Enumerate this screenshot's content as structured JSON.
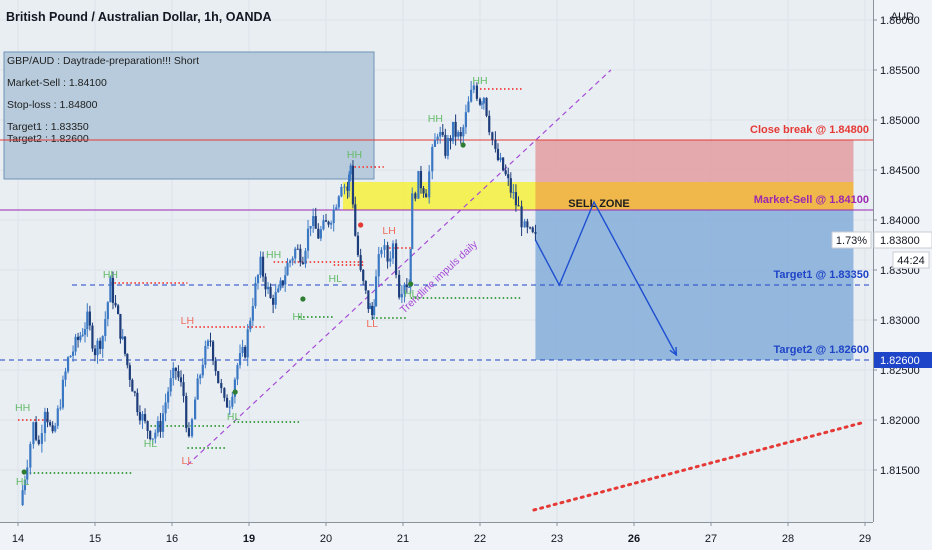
{
  "chart_data": {
    "type": "candlestick",
    "title": "British Pound / Australian Dollar, 1h, OANDA",
    "currency_label": "AUD",
    "ylim": [
      1.8112,
      1.8595
    ],
    "y_ticks": [
      "1.81500",
      "1.82000",
      "1.82500",
      "1.83000",
      "1.83500",
      "1.84000",
      "1.84500",
      "1.85000",
      "1.85500",
      "1.86000"
    ],
    "x_ticks": [
      {
        "label": "14",
        "day": 14.0,
        "bold": false
      },
      {
        "label": "15",
        "day": 15.0,
        "bold": false
      },
      {
        "label": "16",
        "day": 16.0,
        "bold": false
      },
      {
        "label": "19",
        "day": 17.0,
        "bold": true
      },
      {
        "label": "20",
        "day": 18.0,
        "bold": false
      },
      {
        "label": "21",
        "day": 19.0,
        "bold": false
      },
      {
        "label": "22",
        "day": 20.0,
        "bold": false
      },
      {
        "label": "23",
        "day": 21.0,
        "bold": false
      },
      {
        "label": "26",
        "day": 22.0,
        "bold": true
      },
      {
        "label": "27",
        "day": 23.0,
        "bold": false
      },
      {
        "label": "28",
        "day": 24.0,
        "bold": false
      },
      {
        "label": "29",
        "day": 25.0,
        "bold": false
      }
    ],
    "price_path": [
      {
        "day": 14.03,
        "price": 1.8115
      },
      {
        "day": 14.12,
        "price": 1.816
      },
      {
        "day": 14.2,
        "price": 1.8195
      },
      {
        "day": 14.27,
        "price": 1.8175
      },
      {
        "day": 14.35,
        "price": 1.8215
      },
      {
        "day": 14.45,
        "price": 1.818
      },
      {
        "day": 14.55,
        "price": 1.822
      },
      {
        "day": 14.65,
        "price": 1.826
      },
      {
        "day": 14.78,
        "price": 1.828
      },
      {
        "day": 14.9,
        "price": 1.83
      },
      {
        "day": 15.0,
        "price": 1.827
      },
      {
        "day": 15.1,
        "price": 1.8285
      },
      {
        "day": 15.2,
        "price": 1.8335
      },
      {
        "day": 15.3,
        "price": 1.83
      },
      {
        "day": 15.42,
        "price": 1.8255
      },
      {
        "day": 15.55,
        "price": 1.8215
      },
      {
        "day": 15.65,
        "price": 1.8195
      },
      {
        "day": 15.75,
        "price": 1.8185
      },
      {
        "day": 15.85,
        "price": 1.8195
      },
      {
        "day": 15.95,
        "price": 1.823
      },
      {
        "day": 16.05,
        "price": 1.825
      },
      {
        "day": 16.15,
        "price": 1.8225
      },
      {
        "day": 16.22,
        "price": 1.8175
      },
      {
        "day": 16.3,
        "price": 1.822
      },
      {
        "day": 16.4,
        "price": 1.826
      },
      {
        "day": 16.5,
        "price": 1.828
      },
      {
        "day": 16.6,
        "price": 1.824
      },
      {
        "day": 16.68,
        "price": 1.8215
      },
      {
        "day": 16.75,
        "price": 1.822
      },
      {
        "day": 16.85,
        "price": 1.8255
      },
      {
        "day": 16.95,
        "price": 1.827
      },
      {
        "day": 17.05,
        "price": 1.832
      },
      {
        "day": 17.15,
        "price": 1.8355
      },
      {
        "day": 17.28,
        "price": 1.832
      },
      {
        "day": 17.38,
        "price": 1.8325
      },
      {
        "day": 17.5,
        "price": 1.8355
      },
      {
        "day": 17.6,
        "price": 1.837
      },
      {
        "day": 17.7,
        "price": 1.8365
      },
      {
        "day": 17.8,
        "price": 1.84
      },
      {
        "day": 17.9,
        "price": 1.8385
      },
      {
        "day": 18.0,
        "price": 1.8395
      },
      {
        "day": 18.1,
        "price": 1.841
      },
      {
        "day": 18.2,
        "price": 1.844
      },
      {
        "day": 18.28,
        "price": 1.843
      },
      {
        "day": 18.32,
        "price": 1.8455
      },
      {
        "day": 18.38,
        "price": 1.8385
      },
      {
        "day": 18.45,
        "price": 1.8345
      },
      {
        "day": 18.55,
        "price": 1.8315
      },
      {
        "day": 18.6,
        "price": 1.8305
      },
      {
        "day": 18.65,
        "price": 1.834
      },
      {
        "day": 18.72,
        "price": 1.8375
      },
      {
        "day": 18.8,
        "price": 1.836
      },
      {
        "day": 18.87,
        "price": 1.8375
      },
      {
        "day": 18.95,
        "price": 1.833
      },
      {
        "day": 19.02,
        "price": 1.834
      },
      {
        "day": 19.08,
        "price": 1.8335
      },
      {
        "day": 19.12,
        "price": 1.842
      },
      {
        "day": 19.2,
        "price": 1.844
      },
      {
        "day": 19.3,
        "price": 1.843
      },
      {
        "day": 19.38,
        "price": 1.8465
      },
      {
        "day": 19.45,
        "price": 1.849
      },
      {
        "day": 19.55,
        "price": 1.847
      },
      {
        "day": 19.65,
        "price": 1.849
      },
      {
        "day": 19.75,
        "price": 1.848
      },
      {
        "day": 19.85,
        "price": 1.8515
      },
      {
        "day": 19.92,
        "price": 1.8535
      },
      {
        "day": 20.0,
        "price": 1.852
      },
      {
        "day": 20.05,
        "price": 1.8525
      },
      {
        "day": 20.12,
        "price": 1.8495
      },
      {
        "day": 20.2,
        "price": 1.8465
      },
      {
        "day": 20.3,
        "price": 1.845
      },
      {
        "day": 20.4,
        "price": 1.843
      },
      {
        "day": 20.5,
        "price": 1.841
      },
      {
        "day": 20.58,
        "price": 1.839
      },
      {
        "day": 20.65,
        "price": 1.8385
      },
      {
        "day": 20.72,
        "price": 1.838
      }
    ],
    "info_box": {
      "title": "GBP/AUD : Daytrade-preparation!!! Short",
      "market_sell": "Market-Sell : 1.84100",
      "stop_loss": "Stop-loss : 1.84800",
      "target1": "Target1 : 1.83350",
      "target2": "Target2 : 1.82600"
    },
    "levels": [
      {
        "name": "close-break",
        "label": "Close break @ 1.84800",
        "price": 1.848,
        "color": "#e53935"
      },
      {
        "name": "market-sell",
        "label": "Market-Sell @ 1.84100",
        "price": 1.841,
        "color": "#9c27b0"
      },
      {
        "name": "target1",
        "label": "Target1 @ 1.83350",
        "price": 1.8335,
        "color": "#1e44c7"
      },
      {
        "name": "target2",
        "label": "Target2 @ 1.82600",
        "price": 1.826,
        "color": "#1e44c7"
      }
    ],
    "sell_zone": {
      "label": "SELL ZONE",
      "price_from": 1.841,
      "price_to": 1.8438,
      "day_from": 18.22,
      "day_to": 24.85
    },
    "risk_box": {
      "price_from": 1.841,
      "price_to": 1.848,
      "day_from": 20.72,
      "day_to": 24.85
    },
    "reward_box": {
      "price_from": 1.826,
      "price_to": 1.841,
      "day_from": 20.72,
      "day_to": 24.85
    },
    "projection": [
      {
        "day": 20.72,
        "price": 1.838
      },
      {
        "day": 21.03,
        "price": 1.8335
      },
      {
        "day": 21.48,
        "price": 1.8418
      },
      {
        "day": 22.55,
        "price": 1.8265
      }
    ],
    "trendline": {
      "label": "Trendline impuls daily",
      "from": {
        "day": 16.2,
        "price": 1.8155
      },
      "to": {
        "day": 21.7,
        "price": 1.855
      }
    },
    "red_dotted_trend": {
      "from": {
        "day": 20.7,
        "price": 1.811
      },
      "to": {
        "day": 25.0,
        "price": 1.8198
      }
    },
    "pivots": [
      {
        "label": "HH",
        "day": 14.06,
        "price": 1.8205,
        "pos": "above",
        "color": "#66bb6a"
      },
      {
        "label": "HL",
        "day": 14.06,
        "price": 1.8147,
        "pos": "below",
        "color": "#66bb6a"
      },
      {
        "label": "HH",
        "day": 15.2,
        "price": 1.8338,
        "pos": "above",
        "color": "#66bb6a"
      },
      {
        "label": "HL",
        "day": 15.72,
        "price": 1.8185,
        "pos": "below",
        "color": "#66bb6a"
      },
      {
        "label": "LH",
        "day": 16.2,
        "price": 1.8292,
        "pos": "above",
        "color": "#ef6f5e"
      },
      {
        "label": "LL",
        "day": 16.2,
        "price": 1.8168,
        "pos": "below",
        "color": "#ef6f5e"
      },
      {
        "label": "HL",
        "day": 16.8,
        "price": 1.8212,
        "pos": "below",
        "color": "#66bb6a"
      },
      {
        "label": "HH",
        "day": 17.32,
        "price": 1.8358,
        "pos": "above",
        "color": "#66bb6a"
      },
      {
        "label": "HL",
        "day": 17.65,
        "price": 1.8312,
        "pos": "below",
        "color": "#66bb6a"
      },
      {
        "label": "HL",
        "day": 18.12,
        "price": 1.835,
        "pos": "below",
        "color": "#66bb6a"
      },
      {
        "label": "HH",
        "day": 18.37,
        "price": 1.8458,
        "pos": "above",
        "color": "#66bb6a"
      },
      {
        "label": "LH",
        "day": 18.82,
        "price": 1.8382,
        "pos": "above",
        "color": "#ef6f5e"
      },
      {
        "label": "LL",
        "day": 18.6,
        "price": 1.8305,
        "pos": "below",
        "color": "#ef6f5e"
      },
      {
        "label": "HL",
        "day": 19.1,
        "price": 1.8335,
        "pos": "below",
        "color": "#66bb6a"
      },
      {
        "label": "HH",
        "day": 19.42,
        "price": 1.8494,
        "pos": "above",
        "color": "#66bb6a"
      },
      {
        "label": "HH",
        "day": 20.0,
        "price": 1.8532,
        "pos": "above",
        "color": "#66bb6a"
      }
    ],
    "dotted_segments": [
      {
        "day_from": 14.0,
        "day_to": 14.4,
        "price": 1.82,
        "color": "#ef5350"
      },
      {
        "day_from": 14.1,
        "day_to": 15.5,
        "price": 1.8147,
        "color": "#43a047"
      },
      {
        "day_from": 15.2,
        "day_to": 16.2,
        "price": 1.8337,
        "color": "#ef5350"
      },
      {
        "day_from": 15.72,
        "day_to": 16.7,
        "price": 1.8194,
        "color": "#43a047"
      },
      {
        "day_from": 16.2,
        "day_to": 16.72,
        "price": 1.8172,
        "color": "#43a047"
      },
      {
        "day_from": 16.2,
        "day_to": 17.2,
        "price": 1.8293,
        "color": "#ef5350"
      },
      {
        "day_from": 16.8,
        "day_to": 17.65,
        "price": 1.8198,
        "color": "#43a047"
      },
      {
        "day_from": 17.32,
        "day_to": 18.5,
        "price": 1.8358,
        "color": "#ef5350"
      },
      {
        "day_from": 17.65,
        "day_to": 18.1,
        "price": 1.8303,
        "color": "#43a047"
      },
      {
        "day_from": 18.1,
        "day_to": 18.5,
        "price": 1.8355,
        "color": "#ef5350"
      },
      {
        "day_from": 18.37,
        "day_to": 18.75,
        "price": 1.8453,
        "color": "#ef5350"
      },
      {
        "day_from": 18.6,
        "day_to": 19.05,
        "price": 1.8302,
        "color": "#43a047"
      },
      {
        "day_from": 18.82,
        "day_to": 19.1,
        "price": 1.8372,
        "color": "#ef5350"
      },
      {
        "day_from": 19.1,
        "day_to": 20.55,
        "price": 1.8322,
        "color": "#43a047"
      },
      {
        "day_from": 20.0,
        "day_to": 20.55,
        "price": 1.8531,
        "color": "#ef5350"
      }
    ],
    "markers": [
      {
        "day": 14.08,
        "price": 1.8148,
        "color": "#2e7d32"
      },
      {
        "day": 17.7,
        "price": 1.8321,
        "color": "#2e7d32"
      },
      {
        "day": 16.82,
        "price": 1.8228,
        "color": "#2e7d32"
      },
      {
        "day": 18.45,
        "price": 1.8395,
        "color": "#e53935"
      },
      {
        "day": 19.1,
        "price": 1.8336,
        "color": "#2e7d32"
      },
      {
        "day": 19.78,
        "price": 1.8475,
        "color": "#2e7d32"
      }
    ],
    "price_badges": {
      "current_change": "1.73%",
      "current_price": "1.83800",
      "countdown": "44:24",
      "target2_price": "1.82600"
    }
  }
}
